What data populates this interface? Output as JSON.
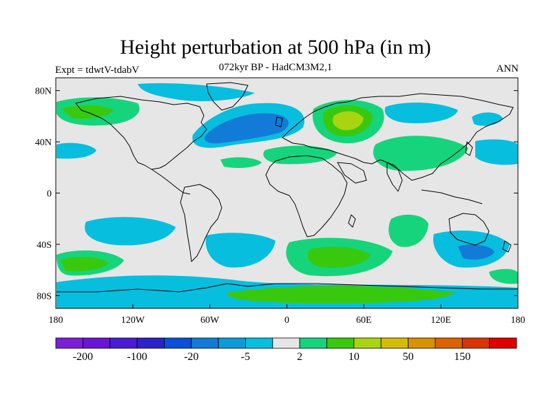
{
  "title": "Height perturbation at 500 hPa (in m)",
  "subtitle": "072kyr BP - HadCM3M2,1",
  "left_label": "Expt = tdwtV-tdabV",
  "right_label": "ANN",
  "map": {
    "projection": "equirectangular",
    "lon_range": [
      -180,
      180
    ],
    "lat_range": [
      -90,
      90
    ],
    "background_color": "#e6e6e6",
    "coastline_color": "#000000",
    "x_ticks": [
      {
        "lon": -180,
        "label": "180"
      },
      {
        "lon": -120,
        "label": "120W"
      },
      {
        "lon": -60,
        "label": "60W"
      },
      {
        "lon": 0,
        "label": "0"
      },
      {
        "lon": 60,
        "label": "60E"
      },
      {
        "lon": 120,
        "label": "120E"
      },
      {
        "lon": 180,
        "label": "180"
      }
    ],
    "y_ticks": [
      {
        "lat": 80,
        "label": "80N"
      },
      {
        "lat": 40,
        "label": "40N"
      },
      {
        "lat": 0,
        "label": "0"
      },
      {
        "lat": -40,
        "label": "40S"
      },
      {
        "lat": -80,
        "label": "80S"
      }
    ]
  },
  "colorbar": {
    "colors": [
      "#7a1fd6",
      "#6a14d4",
      "#4a1bd0",
      "#2b22c8",
      "#0a4fd9",
      "#127bd8",
      "#0e9ad6",
      "#07bede",
      "#e6e6e6",
      "#16d47c",
      "#38c90f",
      "#a8d412",
      "#d4bb06",
      "#d99100",
      "#dc6200",
      "#d83405",
      "#df0000"
    ],
    "labels": [
      {
        "index": 1,
        "text": "-200"
      },
      {
        "index": 3,
        "text": "-100"
      },
      {
        "index": 5,
        "text": "-20"
      },
      {
        "index": 7,
        "text": "-5"
      },
      {
        "index": 9,
        "text": "2"
      },
      {
        "index": 11,
        "text": "10"
      },
      {
        "index": 13,
        "text": "50"
      },
      {
        "index": 15,
        "text": "150"
      }
    ]
  }
}
